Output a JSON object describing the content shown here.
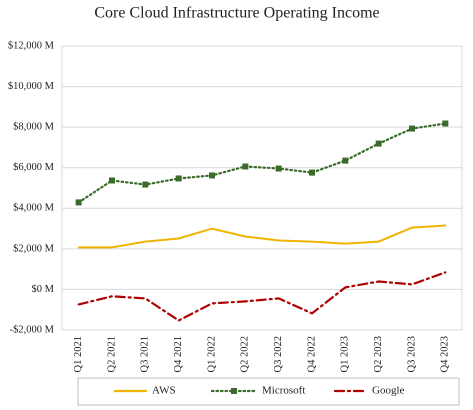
{
  "chart_data": {
    "type": "line",
    "title": "Core Cloud Infrastructure Operating Income",
    "categories": [
      "Q1 2021",
      "Q2 2021",
      "Q3 2021",
      "Q4 2021",
      "Q1 2022",
      "Q2 2022",
      "Q3 2022",
      "Q4 2022",
      "Q1 2023",
      "Q2 2023",
      "Q3 2023",
      "Q4 2023"
    ],
    "series": [
      {
        "name": "AWS",
        "color": "#f0b400",
        "line_style": "solid",
        "values": [
          2070,
          2070,
          2360,
          2510,
          3000,
          2610,
          2410,
          2360,
          2260,
          2360,
          3050,
          3150
        ]
      },
      {
        "name": "Microsoft",
        "color": "#3a6b2a",
        "line_style": "dotted",
        "marker": "square",
        "values": [
          4290,
          5370,
          5170,
          5470,
          5620,
          6060,
          5960,
          5760,
          6350,
          7190,
          7930,
          8180
        ]
      },
      {
        "name": "Google",
        "color": "#b00000",
        "line_style": "dashdot",
        "values": [
          -740,
          -340,
          -440,
          -1530,
          -690,
          -590,
          -440,
          -1180,
          100,
          390,
          250,
          840
        ]
      }
    ],
    "ylim": [
      -2000,
      12000
    ],
    "yticks": [
      {
        "value": -2000,
        "label": "-$2,000 M"
      },
      {
        "value": 0,
        "label": "$0 M"
      },
      {
        "value": 2000,
        "label": "$2,000 M"
      },
      {
        "value": 4000,
        "label": "$4,000 M"
      },
      {
        "value": 6000,
        "label": "$6,000 M"
      },
      {
        "value": 8000,
        "label": "$8,000 M"
      },
      {
        "value": 10000,
        "label": "$10,000 M"
      },
      {
        "value": 12000,
        "label": "$12,000 M"
      }
    ],
    "grid": true,
    "legend": "bottom"
  }
}
